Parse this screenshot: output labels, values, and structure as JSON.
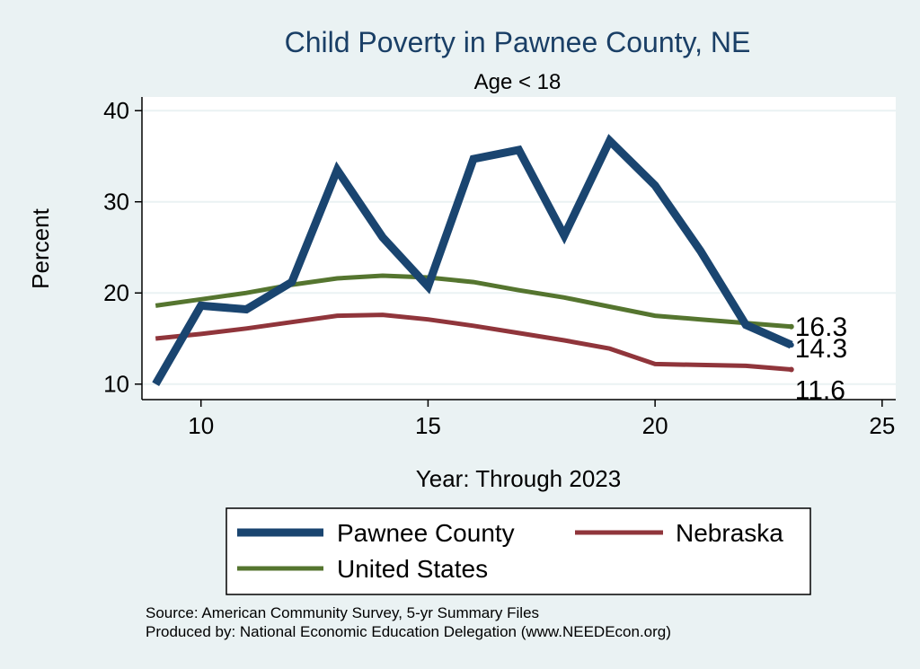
{
  "chart_data": {
    "type": "line",
    "title": "Child Poverty in Pawnee County, NE",
    "subtitle": "Age < 18",
    "xlabel": "Year: Through 2023",
    "ylabel": "Percent",
    "xlim": [
      8.7,
      25.3
    ],
    "ylim": [
      8.3,
      41.5
    ],
    "xticks": [
      10,
      15,
      20,
      25
    ],
    "yticks": [
      10,
      20,
      30,
      40
    ],
    "grid": true,
    "legend_position": "bottom",
    "series": [
      {
        "name": "Pawnee County",
        "color": "#1a4570",
        "width": 9,
        "x": [
          9,
          10,
          11,
          12,
          13,
          14,
          15,
          16,
          17,
          18,
          19,
          20,
          21,
          22,
          23
        ],
        "values": [
          10.0,
          18.6,
          18.2,
          21.2,
          33.5,
          26.1,
          20.7,
          34.7,
          35.7,
          26.3,
          36.7,
          31.8,
          24.6,
          16.5,
          14.3
        ],
        "end_label": "14.3"
      },
      {
        "name": "Nebraska",
        "color": "#90353b",
        "width": 5,
        "x": [
          9,
          10,
          11,
          12,
          13,
          14,
          15,
          16,
          17,
          18,
          19,
          20,
          21,
          22,
          23
        ],
        "values": [
          15.0,
          15.5,
          16.1,
          16.8,
          17.5,
          17.6,
          17.1,
          16.4,
          15.6,
          14.8,
          13.9,
          12.2,
          12.1,
          12.0,
          11.6
        ],
        "end_label": "11.6"
      },
      {
        "name": "United States",
        "color": "#55752f",
        "width": 5,
        "x": [
          9,
          10,
          11,
          12,
          13,
          14,
          15,
          16,
          17,
          18,
          19,
          20,
          21,
          22,
          23
        ],
        "values": [
          18.6,
          19.3,
          20.0,
          20.9,
          21.6,
          21.9,
          21.7,
          21.2,
          20.3,
          19.5,
          18.5,
          17.5,
          17.1,
          16.7,
          16.3
        ],
        "end_label": "16.3"
      }
    ],
    "legend_order": [
      "Pawnee County",
      "Nebraska",
      "United States"
    ]
  },
  "source_lines": [
    "Source: American Community Survey, 5-yr Summary Files",
    "Produced by: National Economic Education Delegation (www.NEEDEcon.org)"
  ]
}
